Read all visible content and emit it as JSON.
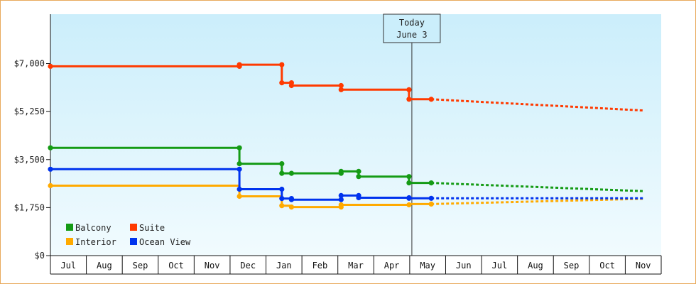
{
  "chart_data": {
    "type": "line",
    "title": "",
    "xlabel": "",
    "ylabel": "",
    "ylim": [
      0,
      8800
    ],
    "y_ticks": [
      {
        "value": 0,
        "label": "$0"
      },
      {
        "value": 1750,
        "label": "$1,750"
      },
      {
        "value": 3500,
        "label": "$3,500"
      },
      {
        "value": 5250,
        "label": "$5,250"
      },
      {
        "value": 7000,
        "label": "$7,000"
      }
    ],
    "x_axis_unit": "days since Jul 1 (each month tick block = 1 month)",
    "months": [
      "Jul",
      "Aug",
      "Sep",
      "Oct",
      "Nov",
      "Dec",
      "Jan",
      "Feb",
      "Mar",
      "Apr",
      "May",
      "Jun",
      "Jul",
      "Aug",
      "Sep",
      "Oct",
      "Nov"
    ],
    "today": {
      "line1": "Today",
      "line2": "June 3",
      "x": 10.06
    },
    "legend": {
      "placement": "bottom-left"
    },
    "series": [
      {
        "name": "Balcony",
        "color": "#159b15",
        "history": [
          [
            0,
            3930
          ],
          [
            5.26,
            3930
          ],
          [
            5.26,
            3350
          ],
          [
            6.44,
            3350
          ],
          [
            6.44,
            3000
          ],
          [
            6.71,
            3000
          ],
          [
            8.09,
            3000
          ],
          [
            8.09,
            3070
          ],
          [
            8.58,
            3070
          ],
          [
            8.58,
            2880
          ],
          [
            9.98,
            2880
          ],
          [
            9.98,
            2650
          ],
          [
            10.6,
            2650
          ]
        ],
        "markers": [
          [
            0,
            3930
          ],
          [
            5.26,
            3930
          ],
          [
            5.26,
            3350
          ],
          [
            6.44,
            3350
          ],
          [
            6.44,
            3000
          ],
          [
            6.71,
            3000
          ],
          [
            8.09,
            3000
          ],
          [
            8.09,
            3070
          ],
          [
            8.58,
            3070
          ],
          [
            8.58,
            2880
          ],
          [
            9.98,
            2880
          ],
          [
            9.98,
            2650
          ],
          [
            10.6,
            2650
          ]
        ],
        "forecast": [
          [
            10.6,
            2650
          ],
          [
            16.5,
            2350
          ]
        ]
      },
      {
        "name": "Suite",
        "color": "#ff3a00",
        "history": [
          [
            0,
            6900
          ],
          [
            5.26,
            6900
          ],
          [
            5.26,
            6960
          ],
          [
            6.44,
            6960
          ],
          [
            6.44,
            6300
          ],
          [
            6.71,
            6300
          ],
          [
            6.71,
            6200
          ],
          [
            8.09,
            6200
          ],
          [
            8.09,
            6050
          ],
          [
            9.98,
            6050
          ],
          [
            9.98,
            5700
          ],
          [
            10.6,
            5700
          ]
        ],
        "markers": [
          [
            0,
            6900
          ],
          [
            5.26,
            6900
          ],
          [
            5.26,
            6960
          ],
          [
            6.44,
            6960
          ],
          [
            6.44,
            6300
          ],
          [
            6.71,
            6300
          ],
          [
            6.71,
            6200
          ],
          [
            8.09,
            6200
          ],
          [
            8.09,
            6050
          ],
          [
            9.98,
            6050
          ],
          [
            9.98,
            5700
          ],
          [
            10.6,
            5700
          ]
        ],
        "forecast": [
          [
            10.6,
            5700
          ],
          [
            16.5,
            5290
          ]
        ]
      },
      {
        "name": "Interior",
        "color": "#ffaa00",
        "history": [
          [
            0,
            2550
          ],
          [
            5.26,
            2550
          ],
          [
            5.26,
            2160
          ],
          [
            6.44,
            2160
          ],
          [
            6.44,
            1820
          ],
          [
            6.71,
            1820
          ],
          [
            6.71,
            1770
          ],
          [
            8.09,
            1770
          ],
          [
            8.09,
            1850
          ],
          [
            9.98,
            1850
          ],
          [
            9.98,
            1880
          ],
          [
            10.6,
            1880
          ]
        ],
        "markers": [
          [
            0,
            2550
          ],
          [
            5.26,
            2160
          ],
          [
            6.44,
            1820
          ],
          [
            6.71,
            1770
          ],
          [
            8.09,
            1770
          ],
          [
            8.09,
            1850
          ],
          [
            9.98,
            1850
          ],
          [
            10.6,
            1880
          ]
        ],
        "forecast": [
          [
            10.6,
            1880
          ],
          [
            16.5,
            2070
          ]
        ]
      },
      {
        "name": "Ocean View",
        "color": "#0033ee",
        "history": [
          [
            0,
            3150
          ],
          [
            5.26,
            3150
          ],
          [
            5.26,
            2420
          ],
          [
            6.44,
            2420
          ],
          [
            6.44,
            2080
          ],
          [
            6.71,
            2080
          ],
          [
            6.71,
            2040
          ],
          [
            8.09,
            2040
          ],
          [
            8.09,
            2190
          ],
          [
            8.58,
            2190
          ],
          [
            8.58,
            2110
          ],
          [
            9.98,
            2110
          ],
          [
            9.98,
            2090
          ],
          [
            10.6,
            2090
          ]
        ],
        "markers": [
          [
            0,
            3150
          ],
          [
            5.26,
            3150
          ],
          [
            5.26,
            2420
          ],
          [
            6.44,
            2420
          ],
          [
            6.44,
            2080
          ],
          [
            6.71,
            2080
          ],
          [
            6.71,
            2040
          ],
          [
            8.09,
            2040
          ],
          [
            8.09,
            2190
          ],
          [
            8.58,
            2190
          ],
          [
            8.58,
            2110
          ],
          [
            9.98,
            2110
          ],
          [
            9.98,
            2090
          ],
          [
            10.6,
            2090
          ]
        ],
        "forecast": [
          [
            10.6,
            2090
          ],
          [
            16.5,
            2090
          ]
        ]
      }
    ]
  }
}
